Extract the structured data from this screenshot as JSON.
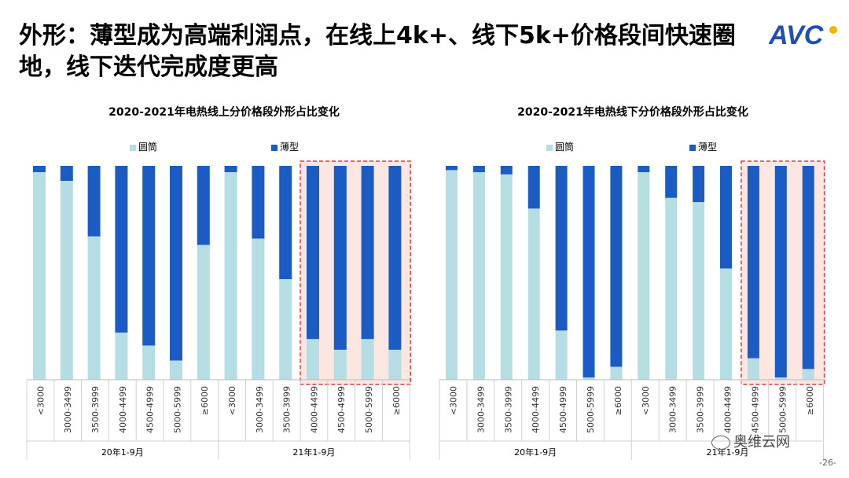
{
  "title": "外形：薄型成为高端利润点，在线上4k+、线下5k+价格段间快速圈地，线下迭代完成度更高",
  "logo_text": "AVC",
  "watermark": "奥维云网",
  "page_number": "-26-",
  "colors": {
    "round": "#b4dde4",
    "thin": "#1a5bc4",
    "highlight_fill": "#fbe6e2",
    "highlight_border": "#e03a3a"
  },
  "chart_data": [
    {
      "type": "bar",
      "stacked": "percent",
      "title": "2020-2021年电热线上分价格段外形占比变化",
      "legend": [
        "圆筒",
        "薄型"
      ],
      "categories": [
        "<3000",
        "3000-3499",
        "3500-3999",
        "4000-4499",
        "4500-4999",
        "5000-5999",
        "≥6000",
        "<3000",
        "3000-3499",
        "3500-3999",
        "4000-4499",
        "4500-4999",
        "5000-5999",
        "≥6000"
      ],
      "groups": [
        {
          "label": "20年1-9月",
          "count": 7
        },
        {
          "label": "21年1-9月",
          "count": 7
        }
      ],
      "highlight_from": 10,
      "series": [
        {
          "name": "圆筒",
          "values": [
            97,
            93,
            67,
            22,
            16,
            9,
            63,
            97,
            66,
            47,
            19,
            14,
            19,
            14
          ]
        },
        {
          "name": "薄型",
          "values": [
            3,
            7,
            33,
            78,
            84,
            91,
            37,
            3,
            34,
            53,
            81,
            86,
            81,
            86
          ]
        }
      ],
      "ylim": [
        0,
        100
      ]
    },
    {
      "type": "bar",
      "stacked": "percent",
      "title": "2020-2021年电热线下分价格段外形占比变化",
      "legend": [
        "圆筒",
        "薄型"
      ],
      "categories": [
        "<3000",
        "3000-3499",
        "3500-3999",
        "4000-4499",
        "4500-4999",
        "5000-5999",
        "≥6000",
        "<3000",
        "3000-3499",
        "3500-3999",
        "4000-4499",
        "4500-4999",
        "5000-5999",
        "≥6000"
      ],
      "groups": [
        {
          "label": "20年1-9月",
          "count": 7
        },
        {
          "label": "21年1-9月",
          "count": 7
        }
      ],
      "highlight_from": 11,
      "series": [
        {
          "name": "圆筒",
          "values": [
            98,
            97,
            96,
            80,
            23,
            1,
            6,
            97,
            85,
            83,
            52,
            10,
            1,
            5
          ]
        },
        {
          "name": "薄型",
          "values": [
            2,
            3,
            4,
            20,
            77,
            99,
            94,
            3,
            15,
            17,
            48,
            90,
            99,
            95
          ]
        }
      ],
      "ylim": [
        0,
        100
      ]
    }
  ]
}
